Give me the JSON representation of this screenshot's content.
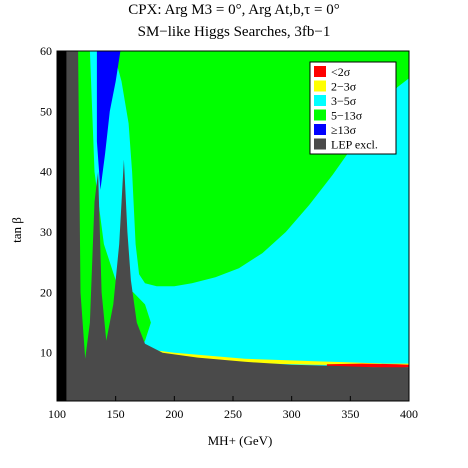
{
  "chart_data": {
    "type": "area",
    "title_line1": "CPX:  Arg M3 = 0°,  Arg At,b,τ = 0°",
    "title_line2": "SM−like Higgs Searches, 3fb−1",
    "xlabel": "MH+ (GeV)",
    "ylabel": "tan β",
    "xlim": [
      100,
      400
    ],
    "ylim": [
      2,
      60
    ],
    "xticks": [
      100,
      150,
      200,
      250,
      300,
      350,
      400
    ],
    "yticks": [
      10,
      20,
      30,
      40,
      50,
      60
    ],
    "legend_position": "top-right",
    "legend": [
      {
        "label": "<2σ",
        "color": "#ff0000"
      },
      {
        "label": "2−3σ",
        "color": "#ffff00"
      },
      {
        "label": "3−5σ",
        "color": "#00ffff"
      },
      {
        "label": "5−13σ",
        "color": "#00ff00"
      },
      {
        "label": "≥13σ",
        "color": "#0000ff"
      },
      {
        "label": "LEP excl.",
        "color": "#4a4a4a"
      }
    ],
    "regions": [
      {
        "name": "3−5σ",
        "color": "#00ffff",
        "points": [
          [
            100,
            2
          ],
          [
            400,
            2
          ],
          [
            400,
            60
          ],
          [
            100,
            60
          ]
        ]
      },
      {
        "name": "5−13σ",
        "color": "#00ff00",
        "points": [
          [
            100,
            60
          ],
          [
            400,
            60
          ],
          [
            400,
            55.5
          ],
          [
            390,
            54
          ],
          [
            375,
            50
          ],
          [
            355,
            45
          ],
          [
            335,
            39.5
          ],
          [
            315,
            34.5
          ],
          [
            295,
            30
          ],
          [
            275,
            26.5
          ],
          [
            255,
            24
          ],
          [
            235,
            22.5
          ],
          [
            215,
            21.5
          ],
          [
            200,
            21
          ],
          [
            185,
            21
          ],
          [
            175,
            21.5
          ],
          [
            170,
            23
          ],
          [
            167,
            28
          ],
          [
            164,
            40
          ],
          [
            161,
            48
          ],
          [
            155,
            55
          ],
          [
            148,
            60
          ]
        ]
      },
      {
        "name": "5−13σ",
        "color": "#00ff00",
        "points": [
          [
            100,
            2
          ],
          [
            135,
            2
          ],
          [
            148,
            5
          ],
          [
            162,
            8
          ],
          [
            175,
            12
          ],
          [
            180,
            15
          ],
          [
            175,
            18
          ],
          [
            165,
            20
          ],
          [
            150,
            22
          ],
          [
            140,
            28
          ],
          [
            132,
            40
          ],
          [
            128,
            60
          ],
          [
            100,
            60
          ]
        ]
      },
      {
        "name": "≥13σ",
        "color": "#0000ff",
        "points": [
          [
            134,
            60
          ],
          [
            154,
            60
          ],
          [
            150,
            55
          ],
          [
            145,
            50
          ],
          [
            141,
            43
          ],
          [
            137,
            37
          ],
          [
            134,
            45
          ]
        ]
      },
      {
        "name": "2−3σ",
        "color": "#ffff00",
        "points": [
          [
            168,
            11
          ],
          [
            180,
            10.5
          ],
          [
            200,
            10
          ],
          [
            230,
            9.5
          ],
          [
            260,
            9
          ],
          [
            290,
            8.8
          ],
          [
            320,
            8.6
          ],
          [
            350,
            8.4
          ],
          [
            380,
            8.2
          ],
          [
            400,
            8.2
          ],
          [
            400,
            7.8
          ],
          [
            360,
            7.9
          ],
          [
            320,
            8
          ],
          [
            280,
            8.2
          ],
          [
            240,
            8.6
          ],
          [
            210,
            9
          ],
          [
            185,
            9.6
          ],
          [
            170,
            10.5
          ]
        ]
      },
      {
        "name": "<2σ",
        "color": "#ff0000",
        "points": [
          [
            330,
            8.1
          ],
          [
            360,
            8.2
          ],
          [
            390,
            8.1
          ],
          [
            400,
            8
          ],
          [
            400,
            7.6
          ],
          [
            390,
            7.5
          ],
          [
            360,
            7.6
          ],
          [
            330,
            7.8
          ]
        ]
      },
      {
        "name": "LEP excl.",
        "color": "#4a4a4a",
        "points": [
          [
            100,
            2
          ],
          [
            400,
            2
          ],
          [
            400,
            7.6
          ],
          [
            370,
            7.6
          ],
          [
            340,
            7.8
          ],
          [
            300,
            8
          ],
          [
            260,
            8.5
          ],
          [
            220,
            9.2
          ],
          [
            190,
            10
          ],
          [
            175,
            11.5
          ],
          [
            168,
            15
          ],
          [
            163,
            22
          ],
          [
            160,
            30
          ],
          [
            157,
            42
          ],
          [
            153,
            28
          ],
          [
            148,
            18
          ],
          [
            142,
            12
          ],
          [
            138,
            20
          ],
          [
            135,
            40
          ],
          [
            132,
            35
          ],
          [
            128,
            15
          ],
          [
            124,
            9
          ],
          [
            120,
            20
          ],
          [
            118,
            60
          ],
          [
            100,
            60
          ]
        ]
      },
      {
        "name": "black",
        "color": "#000000",
        "points": [
          [
            100,
            60
          ],
          [
            108,
            60
          ],
          [
            108,
            2
          ],
          [
            100,
            2
          ]
        ]
      }
    ]
  }
}
